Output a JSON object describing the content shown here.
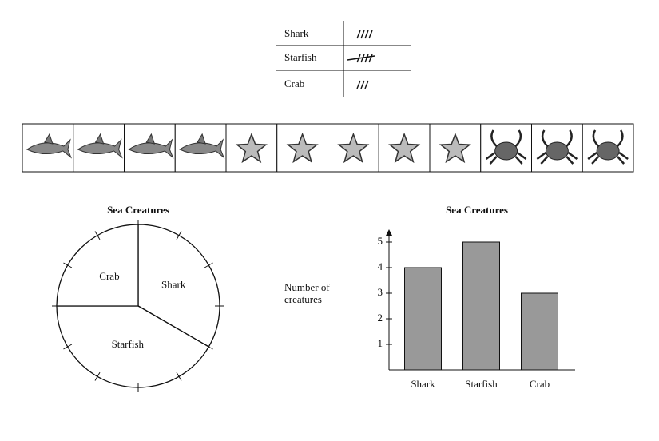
{
  "tally": {
    "rows": [
      {
        "label": "Shark",
        "count": 4
      },
      {
        "label": "Starfish",
        "count": 5
      },
      {
        "label": "Crab",
        "count": 3
      }
    ]
  },
  "chart_data": [
    {
      "type": "pie",
      "title": "Sea Creatures",
      "categories": [
        "Shark",
        "Starfish",
        "Crab"
      ],
      "values": [
        4,
        5,
        3
      ],
      "color": "#ffffff"
    },
    {
      "type": "bar",
      "title": "Sea Creatures",
      "y_label": "Number of creatures",
      "categories": [
        "Shark",
        "Starfish",
        "Crab"
      ],
      "values": [
        4,
        5,
        3
      ],
      "color": "#999999",
      "ylim": [
        0,
        5.5
      ],
      "yticks": [
        1,
        2,
        3,
        4,
        5
      ]
    }
  ]
}
